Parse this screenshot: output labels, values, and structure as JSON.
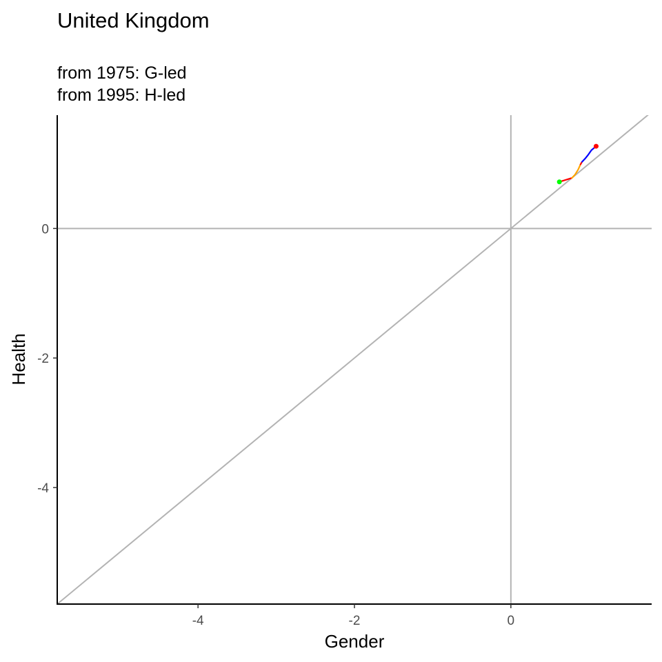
{
  "chart_data": {
    "type": "line",
    "title": "United Kingdom",
    "subtitle_lines": [
      "from 1975:  G-led",
      "from 1995:  H-led"
    ],
    "xlabel": "Gender",
    "ylabel": "Health",
    "xlim": [
      -5.8,
      1.8
    ],
    "ylim": [
      -5.8,
      1.75
    ],
    "x_ticks": [
      -4,
      -2,
      0
    ],
    "y_ticks": [
      0,
      -2,
      -4
    ],
    "x_tick_labels": [
      "-4",
      "-2",
      "0"
    ],
    "y_tick_labels": [
      "0",
      "-2",
      "-4"
    ],
    "reference_lines": {
      "vertical_x": 0,
      "horizontal_y": 0,
      "diagonal": "y = x",
      "color": "#b3b3b3"
    },
    "grid": false,
    "legend": "none",
    "series": [
      {
        "segments": [
          {
            "color": "#ff0000",
            "points": [
              [
                0.62,
                0.72
              ],
              [
                0.7,
                0.75
              ],
              [
                0.78,
                0.78
              ]
            ]
          },
          {
            "color": "#ffa500",
            "points": [
              [
                0.78,
                0.78
              ],
              [
                0.82,
                0.83
              ],
              [
                0.86,
                0.91
              ],
              [
                0.89,
                0.99
              ]
            ]
          },
          {
            "color": "#ff0000",
            "points": [
              [
                0.89,
                0.99
              ],
              [
                0.91,
                1.03
              ]
            ]
          },
          {
            "color": "#0000ff",
            "points": [
              [
                0.91,
                1.03
              ],
              [
                0.95,
                1.08
              ],
              [
                0.99,
                1.14
              ],
              [
                1.03,
                1.21
              ],
              [
                1.07,
                1.25
              ]
            ]
          },
          {
            "color": "#ff0000",
            "points": [
              [
                1.07,
                1.25
              ],
              [
                1.09,
                1.27
              ]
            ]
          }
        ],
        "start_point": {
          "x": 0.62,
          "y": 0.72,
          "color": "#00ff00"
        },
        "end_point": {
          "x": 1.09,
          "y": 1.27,
          "color": "#ff0000"
        }
      }
    ]
  }
}
